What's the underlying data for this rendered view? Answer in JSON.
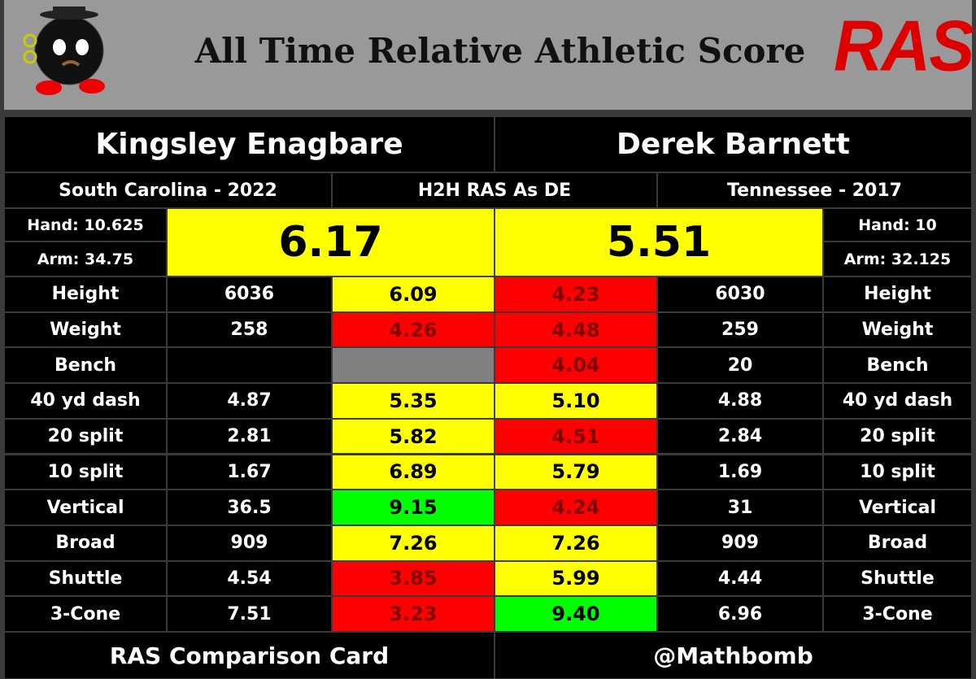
{
  "header": {
    "title": "All Time Relative Athletic Score",
    "logo_text": "RAS"
  },
  "left": {
    "name": "Kingsley Enagbare",
    "school": "South Carolina  - 2022",
    "hand": "Hand: 10.625",
    "arm": "Arm: 34.75",
    "ras": "6.17",
    "ras_color": "#ffff00"
  },
  "middle": {
    "label": "H2H RAS As DE"
  },
  "right": {
    "name": "Derek Barnett",
    "school": "Tennessee - 2017",
    "hand": "Hand: 10",
    "arm": "Arm: 32.125",
    "ras": "5.51",
    "ras_color": "#ffff00"
  },
  "rows": [
    {
      "label": "Height",
      "left_value": "6036",
      "left_score": "6.09",
      "left_color": "#ffff00",
      "right_score": "4.23",
      "right_color": "#ff0000",
      "right_value": "6030"
    },
    {
      "label": "Weight",
      "left_value": "258",
      "left_score": "4.26",
      "left_color": "#ff0000",
      "right_score": "4.48",
      "right_color": "#ff0000",
      "right_value": "259"
    },
    {
      "label": "Bench",
      "left_value": null,
      "left_score": null,
      "left_color": "#808080",
      "right_score": "4.04",
      "right_color": "#ff0000",
      "right_value": "20"
    },
    {
      "label": "40 yd dash",
      "left_value": "4.87",
      "left_score": "5.35",
      "left_color": "#ffff00",
      "right_score": "5.10",
      "right_color": "#ffff00",
      "right_value": "4.88"
    },
    {
      "label": "20 split",
      "left_value": "2.81",
      "left_score": "5.82",
      "left_color": "#ffff00",
      "right_score": "4.51",
      "right_color": "#ff0000",
      "right_value": "2.84"
    },
    {
      "label": "10 split",
      "left_value": "1.67",
      "left_score": "6.89",
      "left_color": "#ffff00",
      "right_score": "5.79",
      "right_color": "#ffff00",
      "right_value": "1.69"
    },
    {
      "label": "Vertical",
      "left_value": "36.5",
      "left_score": "9.15",
      "left_color": "#00ff00",
      "right_score": "4.24",
      "right_color": "#ff0000",
      "right_value": "31"
    },
    {
      "label": "Broad",
      "left_value": "909",
      "left_score": "7.26",
      "left_color": "#ffff00",
      "right_score": "7.26",
      "right_color": "#ffff00",
      "right_value": "909"
    },
    {
      "label": "Shuttle",
      "left_value": "4.54",
      "left_score": "3.85",
      "left_color": "#ff0000",
      "right_score": "5.99",
      "right_color": "#ffff00",
      "right_value": "4.44"
    },
    {
      "label": "3-Cone",
      "left_value": "7.51",
      "left_score": "3.23",
      "left_color": "#ff0000",
      "right_score": "9.40",
      "right_color": "#00ff00",
      "right_value": "6.96"
    }
  ],
  "footer": {
    "left": "RAS Comparison Card",
    "right": "@Mathbomb"
  }
}
